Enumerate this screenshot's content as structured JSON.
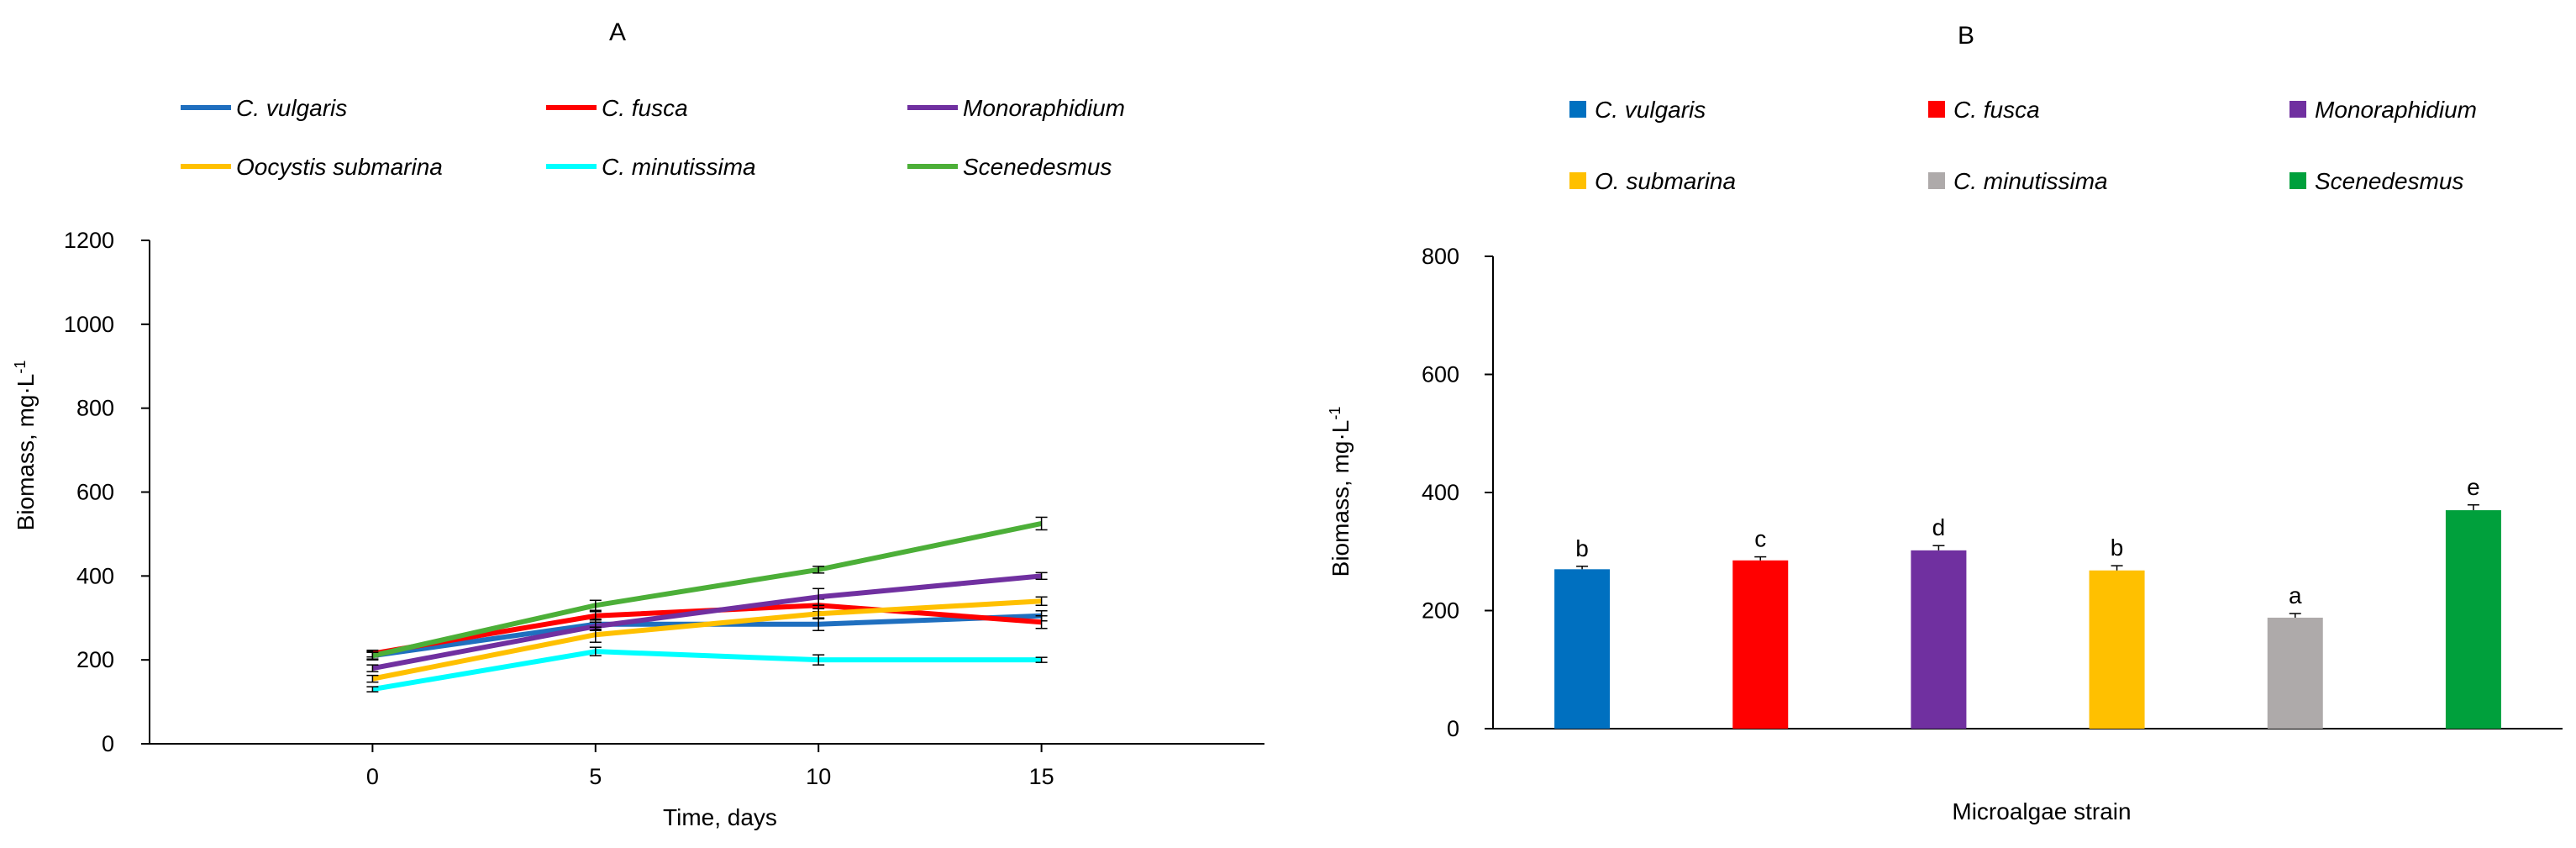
{
  "chart_data": [
    {
      "panel": "A",
      "type": "line",
      "title": "A",
      "xlabel": "Time, days",
      "ylabel": "Biomass, mg·L",
      "ylabel_superscript": "-1",
      "x": [
        0,
        5,
        10,
        15
      ],
      "xlim": [
        -5,
        20
      ],
      "ylim": [
        0,
        1200
      ],
      "xticks": [
        "0",
        "5",
        "10",
        "15"
      ],
      "yticks": [
        "0",
        "200",
        "400",
        "600",
        "800",
        "1000",
        "1200"
      ],
      "grid": false,
      "legend_position": "top",
      "series": [
        {
          "name": "C. vulgaris",
          "color": "#1f6fbf",
          "values": [
            210,
            285,
            285,
            305
          ],
          "errors": [
            10,
            12,
            15,
            12
          ]
        },
        {
          "name": "C. fusca",
          "color": "#ff0000",
          "values": [
            215,
            305,
            330,
            290
          ],
          "errors": [
            8,
            10,
            15,
            15
          ]
        },
        {
          "name": "Monoraphidium",
          "color": "#7030a0",
          "values": [
            180,
            280,
            350,
            400
          ],
          "errors": [
            8,
            10,
            20,
            8
          ]
        },
        {
          "name": "Oocystis submarina",
          "color": "#ffc000",
          "values": [
            155,
            260,
            310,
            340
          ],
          "errors": [
            8,
            18,
            12,
            10
          ]
        },
        {
          "name": "C. minutissima",
          "color": "#00ffff",
          "values": [
            130,
            220,
            200,
            200
          ],
          "errors": [
            6,
            10,
            12,
            6
          ]
        },
        {
          "name": "Scenedesmus",
          "color": "#4caf38",
          "values": [
            210,
            330,
            415,
            525
          ],
          "errors": [
            8,
            12,
            8,
            15
          ]
        }
      ]
    },
    {
      "panel": "B",
      "type": "bar",
      "title": "B",
      "xlabel": "Microalgae strain",
      "ylabel": "Biomass, mg·L",
      "ylabel_superscript": "-1",
      "ylim": [
        0,
        800
      ],
      "yticks": [
        "0",
        "200",
        "400",
        "600",
        "800"
      ],
      "grid": false,
      "legend_position": "top",
      "categories": [
        "C. vulgaris",
        "C. fusca",
        "Monoraphidium",
        "O. submarina",
        "C. minutissima",
        "Scenedesmus"
      ],
      "colors": [
        "#0070c0",
        "#ff0000",
        "#7030a0",
        "#ffc000",
        "#aeaaaa",
        "#00a03c"
      ],
      "values": [
        270,
        285,
        302,
        268,
        188,
        370
      ],
      "errors": [
        5,
        6,
        8,
        8,
        7,
        9
      ],
      "significance": [
        "b",
        "c",
        "d",
        "b",
        "a",
        "e"
      ]
    }
  ]
}
